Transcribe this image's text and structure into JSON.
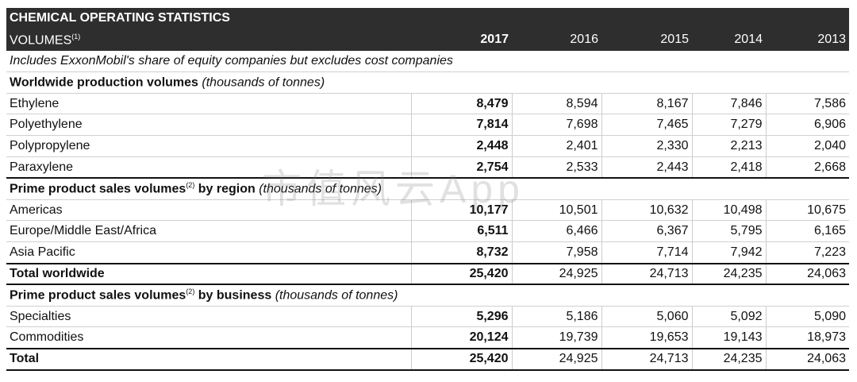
{
  "title": "CHEMICAL OPERATING STATISTICS",
  "volumes_label": "VOLUMES",
  "volumes_note": "(1)",
  "years": [
    "2017",
    "2016",
    "2015",
    "2014",
    "2013"
  ],
  "note": "Includes ExxonMobil's share of equity companies but excludes cost companies",
  "sections": [
    {
      "title": "Worldwide production volumes",
      "note_sup": "",
      "title2": "",
      "unit": "(thousands of tonnes)",
      "rows": [
        {
          "label": "Ethylene",
          "values": [
            "8,479",
            "8,594",
            "8,167",
            "7,846",
            "7,586"
          ]
        },
        {
          "label": "Polyethylene",
          "values": [
            "7,814",
            "7,698",
            "7,465",
            "7,279",
            "6,906"
          ]
        },
        {
          "label": "Polypropylene",
          "values": [
            "2,448",
            "2,401",
            "2,330",
            "2,213",
            "2,040"
          ]
        },
        {
          "label": "Paraxylene",
          "values": [
            "2,754",
            "2,533",
            "2,443",
            "2,418",
            "2,668"
          ]
        }
      ]
    },
    {
      "title": "Prime product sales volumes",
      "note_sup": "(2)",
      "title2": " by region",
      "unit": "(thousands of tonnes)",
      "rows": [
        {
          "label": "Americas",
          "values": [
            "10,177",
            "10,501",
            "10,632",
            "10,498",
            "10,675"
          ]
        },
        {
          "label": "Europe/Middle East/Africa",
          "values": [
            "6,511",
            "6,466",
            "6,367",
            "5,795",
            "6,165"
          ]
        },
        {
          "label": "Asia Pacific",
          "values": [
            "8,732",
            "7,958",
            "7,714",
            "7,942",
            "7,223"
          ]
        }
      ],
      "total": {
        "label": "Total worldwide",
        "values": [
          "25,420",
          "24,925",
          "24,713",
          "24,235",
          "24,063"
        ]
      }
    },
    {
      "title": "Prime product sales volumes",
      "note_sup": "(2)",
      "title2": " by business",
      "unit": "(thousands of tonnes)",
      "rows": [
        {
          "label": "Specialties",
          "values": [
            "5,296",
            "5,186",
            "5,060",
            "5,092",
            "5,090"
          ]
        },
        {
          "label": "Commodities",
          "values": [
            "20,124",
            "19,739",
            "19,653",
            "19,143",
            "18,973"
          ]
        }
      ],
      "total": {
        "label": "Total",
        "values": [
          "25,420",
          "24,925",
          "24,713",
          "24,235",
          "24,063"
        ]
      }
    }
  ],
  "watermark": "市值风云App"
}
